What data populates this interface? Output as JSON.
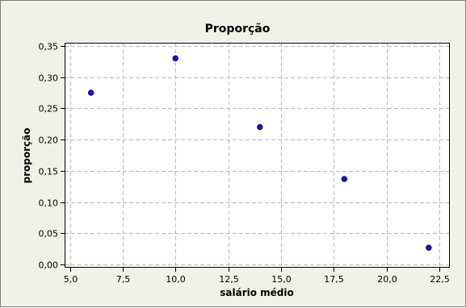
{
  "chart_data": {
    "type": "scatter",
    "title": "Proporção",
    "xlabel": "salário médio",
    "ylabel": "proporção",
    "xlim": [
      4.75,
      23.0
    ],
    "ylim": [
      -0.005,
      0.355
    ],
    "x_ticks": [
      5.0,
      7.5,
      10.0,
      12.5,
      15.0,
      17.5,
      20.0,
      22.5
    ],
    "x_tick_labels": [
      "5,0",
      "7,5",
      "10,0",
      "12,5",
      "15,0",
      "17,5",
      "20,0",
      "22,5"
    ],
    "y_ticks": [
      0.0,
      0.05,
      0.1,
      0.15,
      0.2,
      0.25,
      0.3,
      0.35
    ],
    "y_tick_labels": [
      "0,00",
      "0,05",
      "0,10",
      "0,15",
      "0,20",
      "0,25",
      "0,30",
      "0,35"
    ],
    "grid": true,
    "series": [
      {
        "x": [
          6,
          10,
          14,
          18,
          22
        ],
        "y": [
          0.275,
          0.33,
          0.22,
          0.137,
          0.027
        ]
      }
    ],
    "colors": {
      "frame_background": "#f2f1e8",
      "plot_background": "#ffffff",
      "point_fill": "#1414c8"
    }
  }
}
